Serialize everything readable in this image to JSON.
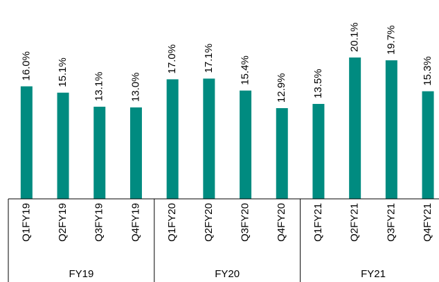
{
  "chart_data": {
    "type": "bar",
    "categories": [
      "Q1FY19",
      "Q2FY19",
      "Q3FY19",
      "Q4FY19",
      "Q1FY20",
      "Q2FY20",
      "Q3FY20",
      "Q4FY20",
      "Q1FY21",
      "Q2FY21",
      "Q3FY21",
      "Q4FY21"
    ],
    "groups": [
      "FY19",
      "FY20",
      "FY21"
    ],
    "values": [
      16.0,
      15.1,
      13.1,
      13.0,
      17.0,
      17.1,
      15.4,
      12.9,
      13.5,
      20.1,
      19.7,
      15.3
    ],
    "value_labels": [
      "16.0%",
      "15.1%",
      "13.1%",
      "13.0%",
      "17.0%",
      "17.1%",
      "15.4%",
      "12.9%",
      "13.5%",
      "20.1%",
      "19.7%",
      "15.3%"
    ],
    "color": "#008b80"
  }
}
